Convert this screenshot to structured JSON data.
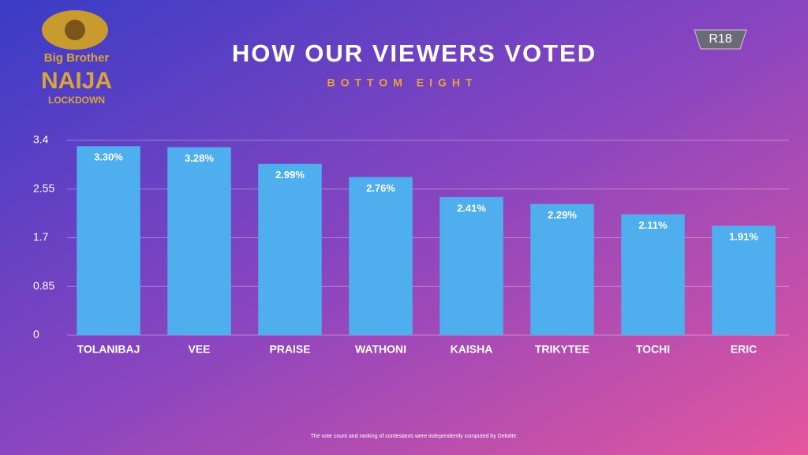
{
  "chart_data": {
    "type": "bar",
    "title": "HOW OUR VIEWERS VOTED",
    "subtitle": "BOTTOM EIGHT",
    "categories": [
      "TOLANIBAJ",
      "VEE",
      "PRAISE",
      "WATHONI",
      "KAISHA",
      "TRIKYTEE",
      "TOCHI",
      "ERIC"
    ],
    "values": [
      3.3,
      3.28,
      2.99,
      2.76,
      2.41,
      2.29,
      2.11,
      1.91
    ],
    "value_labels": [
      "3.30%",
      "3.28%",
      "2.99%",
      "2.76%",
      "2.41%",
      "2.29%",
      "2.11%",
      "1.91%"
    ],
    "color": "#4eaeee",
    "ylim": [
      0,
      3.4
    ],
    "yticks": [
      0,
      0.85,
      1.7,
      2.55,
      3.4
    ],
    "grid": true
  },
  "logo": {
    "line1": "Big Brother",
    "line2": "NAIJA",
    "line3": "LOCKDOWN"
  },
  "badge": "R18",
  "footnote": "The vote count and ranking of contestants were independently computed by Deloitte."
}
